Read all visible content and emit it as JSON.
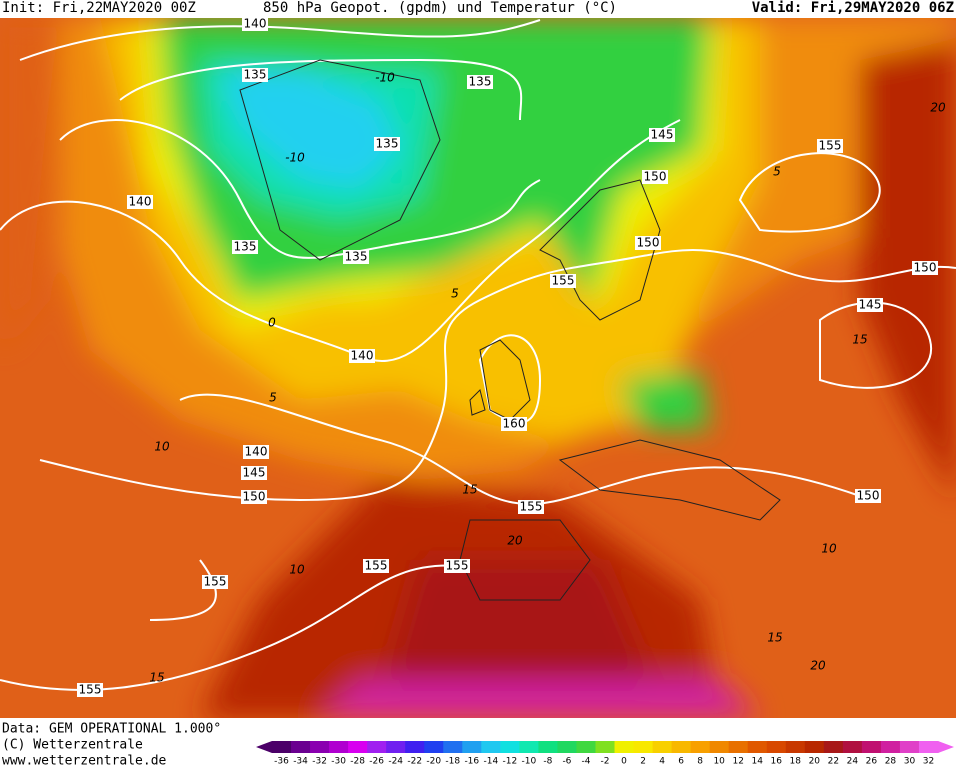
{
  "header": {
    "init": "Init: Fri,22MAY2020 00Z",
    "title": "850 hPa Geopot. (gpdm) und Temperatur (°C)",
    "valid": "Valid: Fri,29MAY2020 06Z"
  },
  "footer": {
    "data": "Data: GEM OPERATIONAL 1.000°",
    "copyright": "(C) Wetterzentrale",
    "url": "www.wetterzentrale.de"
  },
  "geopotential_labels": [
    140,
    135,
    135,
    135,
    140,
    135,
    135,
    145,
    150,
    150,
    155,
    155,
    150,
    145,
    140,
    160,
    140,
    145,
    150,
    155,
    150,
    155,
    155,
    155,
    155
  ],
  "temperature_labels": [
    -10,
    -10,
    0,
    5,
    5,
    10,
    15,
    20,
    10,
    15,
    15,
    20,
    10,
    5,
    15,
    20
  ],
  "colorbar": {
    "ticks": [
      -36,
      -34,
      -32,
      -30,
      -28,
      -26,
      -24,
      -22,
      -20,
      -18,
      -16,
      -14,
      -12,
      -10,
      -8,
      -6,
      -4,
      -2,
      0,
      2,
      4,
      6,
      8,
      10,
      12,
      14,
      16,
      18,
      20,
      22,
      24,
      26,
      28,
      30,
      32
    ],
    "colors": [
      "#4b0068",
      "#6a0090",
      "#8a00b0",
      "#b000d0",
      "#d800f0",
      "#a020f0",
      "#7020f0",
      "#4020f0",
      "#2040f0",
      "#2070f0",
      "#20a0f0",
      "#20c8f0",
      "#10e0e0",
      "#10e8b0",
      "#10e080",
      "#20d860",
      "#40d840",
      "#80e020",
      "#f0f000",
      "#f8e800",
      "#f8d000",
      "#f8b800",
      "#f8a000",
      "#f08800",
      "#e87000",
      "#e05800",
      "#d84800",
      "#c83800",
      "#b82800",
      "#a81818",
      "#b01040",
      "#c01070",
      "#d020a0",
      "#e040c8",
      "#f060f0"
    ]
  }
}
